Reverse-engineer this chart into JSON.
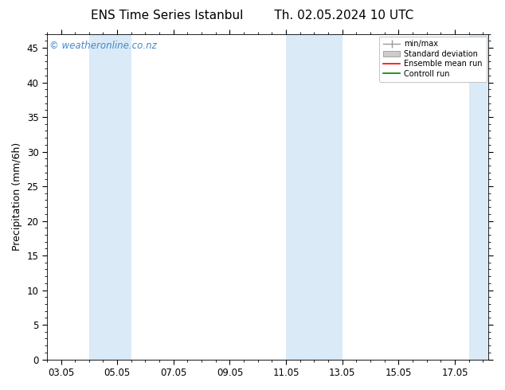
{
  "title_left": "ENS Time Series Istanbul",
  "title_right": "Th. 02.05.2024 10 UTC",
  "ylabel": "Precipitation (mm/6h)",
  "watermark": "© weatheronline.co.nz",
  "ylim": [
    0,
    47
  ],
  "yticks": [
    0,
    5,
    10,
    15,
    20,
    25,
    30,
    35,
    40,
    45
  ],
  "xtick_labels": [
    "03.05",
    "05.05",
    "07.05",
    "09.05",
    "11.05",
    "13.05",
    "15.05",
    "17.05"
  ],
  "xtick_positions": [
    3,
    5,
    7,
    9,
    11,
    13,
    15,
    17
  ],
  "xlim": [
    2.5,
    18.2
  ],
  "shade_bands": [
    {
      "xmin": 4.0,
      "xmax": 5.5
    },
    {
      "xmin": 11.0,
      "xmax": 13.0
    },
    {
      "xmin": 17.5,
      "xmax": 18.2
    }
  ],
  "shade_color": "#daeaf7",
  "bg_color": "#ffffff",
  "ensemble_mean_color": "#ff0000",
  "control_run_color": "#008000",
  "legend_items": [
    "min/max",
    "Standard deviation",
    "Ensemble mean run",
    "Controll run"
  ],
  "title_fontsize": 11,
  "tick_label_fontsize": 8.5,
  "ylabel_fontsize": 9,
  "watermark_color": "#4488cc",
  "watermark_fontsize": 8.5
}
